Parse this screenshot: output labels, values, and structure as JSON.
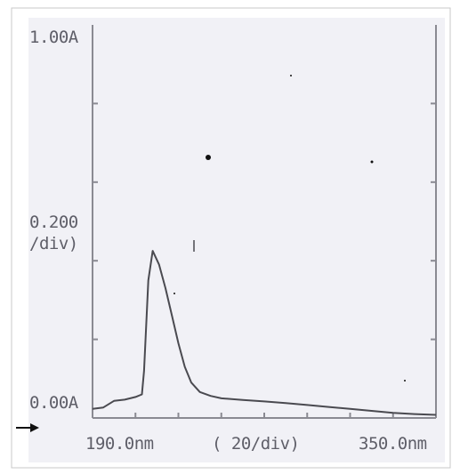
{
  "chart_data": {
    "type": "line",
    "title": "",
    "y_top_label": "1.00A",
    "y_scale_label_line1": "0.200",
    "y_scale_label_line2": "/div)",
    "y_bottom_label": "0.00A",
    "x_start_label": "190.0nm",
    "x_scale_label": "(  20/div)",
    "x_end_label": "350.0nm",
    "xlim": [
      190,
      350
    ],
    "ylim": [
      0,
      1.0
    ],
    "x_unit": "nm",
    "y_unit": "A",
    "grid": false,
    "x_major_step": 20,
    "y_major_step": 0.2,
    "series": [
      {
        "x": [
          190,
          195,
          200,
          205,
          210,
          213,
          214,
          216,
          218,
          221,
          224,
          227,
          230,
          233,
          236,
          240,
          245,
          250,
          260,
          270,
          280,
          290,
          300,
          310,
          320,
          330,
          340,
          350
        ],
        "y": [
          0.02,
          0.03,
          0.04,
          0.05,
          0.05,
          0.06,
          0.12,
          0.35,
          0.425,
          0.39,
          0.33,
          0.26,
          0.19,
          0.13,
          0.09,
          0.066,
          0.056,
          0.05,
          0.046,
          0.042,
          0.038,
          0.033,
          0.028,
          0.023,
          0.018,
          0.013,
          0.01,
          0.008
        ]
      }
    ],
    "colors": {
      "paper": "#f1f1f6",
      "ink": "#4a4a50",
      "axis": "#8a8a92",
      "label": "#5e5e68",
      "frame": "#c8c8c8",
      "marker": "#111111"
    }
  }
}
